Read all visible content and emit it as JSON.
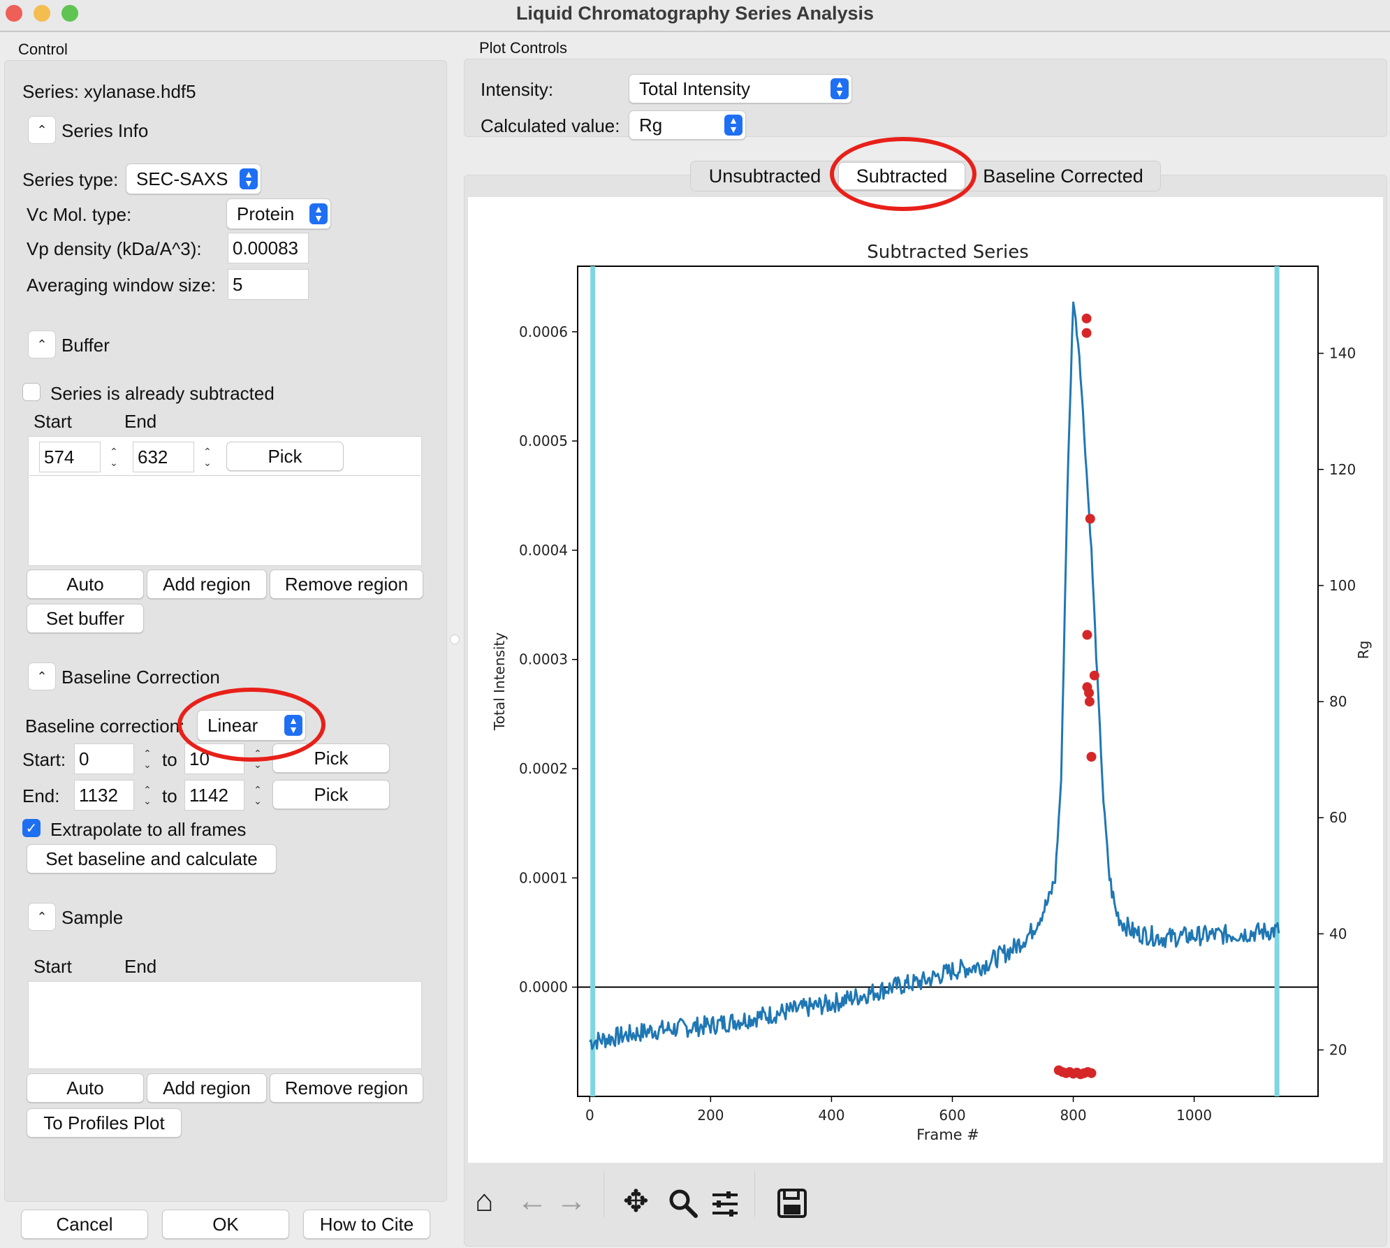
{
  "window": {
    "title": "Liquid Chromatography Series Analysis",
    "traffic_colors": [
      "#ee5f57",
      "#f4bd4f",
      "#60c453"
    ]
  },
  "control": {
    "group_label": "Control",
    "series_name": "Series: xylanase.hdf5",
    "series_info": {
      "header": "Series Info",
      "series_type_label": "Series type:",
      "series_type_value": "SEC-SAXS",
      "vc_mol_type_label": "Vc Mol. type:",
      "vc_mol_type_value": "Protein",
      "vp_density_label": "Vp density (kDa/A^3):",
      "vp_density_value": "0.00083",
      "avg_window_label": "Averaging window size:",
      "avg_window_value": "5"
    },
    "buffer": {
      "header": "Buffer",
      "already_subtracted_label": "Series is already subtracted",
      "already_subtracted_checked": false,
      "start_header": "Start",
      "end_header": "End",
      "regions": [
        {
          "start": "574",
          "end": "632",
          "pick_label": "Pick"
        }
      ],
      "auto_label": "Auto",
      "add_region_label": "Add region",
      "remove_region_label": "Remove region",
      "set_buffer_label": "Set buffer"
    },
    "baseline": {
      "header": "Baseline Correction",
      "correction_label": "Baseline correction:",
      "correction_value": "Linear",
      "start_label": "Start:",
      "start_from": "0",
      "start_to": "10",
      "end_label": "End:",
      "end_from": "1132",
      "end_to": "1142",
      "to_label": "to",
      "pick_label": "Pick",
      "extrapolate_label": "Extrapolate to all frames",
      "extrapolate_checked": true,
      "set_button_label": "Set baseline and calculate"
    },
    "sample": {
      "header": "Sample",
      "start_header": "Start",
      "end_header": "End",
      "auto_label": "Auto",
      "add_region_label": "Add region",
      "remove_region_label": "Remove region",
      "profiles_label": "To Profiles Plot"
    },
    "footer": {
      "cancel_label": "Cancel",
      "ok_label": "OK",
      "cite_label": "How to Cite"
    }
  },
  "plot_controls": {
    "group_label": "Plot Controls",
    "intensity_label": "Intensity:",
    "intensity_value": "Total Intensity",
    "calc_label": "Calculated value:",
    "calc_value": "Rg",
    "tabs": [
      "Unsubtracted",
      "Subtracted",
      "Baseline Corrected"
    ],
    "active_tab": "Subtracted"
  },
  "annotation_color": "#e8201a",
  "chart_data": {
    "type": "line",
    "title": "Subtracted Series",
    "xlabel": "Frame #",
    "ylabel": "Total Intensity",
    "y2label": "Rg",
    "xlim": [
      -20,
      1205
    ],
    "ylim": [
      -0.0001,
      0.00066
    ],
    "y2lim": [
      12,
      155
    ],
    "xticks": [
      0,
      200,
      400,
      600,
      800,
      1000
    ],
    "yticks": [
      0.0,
      0.0001,
      0.0002,
      0.0003,
      0.0004,
      0.0005,
      0.0006
    ],
    "ytick_labels": [
      "0.0000",
      "0.0001",
      "0.0002",
      "0.0003",
      "0.0004",
      "0.0005",
      "0.0006"
    ],
    "y2ticks": [
      20,
      40,
      60,
      80,
      100,
      120,
      140
    ],
    "baseline_markers": [
      5,
      1137
    ],
    "series_color": "#1f77b4",
    "rg_color": "#d62728",
    "marker_line_color": "#7fd6e0",
    "intensity_series": {
      "name": "Total Intensity",
      "x": [
        0,
        50,
        100,
        200,
        300,
        400,
        500,
        550,
        600,
        650,
        700,
        730,
        760,
        770,
        780,
        790,
        800,
        810,
        820,
        830,
        840,
        850,
        860,
        870,
        880,
        900,
        950,
        1000,
        1050,
        1100,
        1140
      ],
      "y": [
        -5e-05,
        -4.5e-05,
        -4e-05,
        -3.5e-05,
        -2.5e-05,
        -1.5e-05,
        0.0,
        5e-06,
        1.5e-05,
        2e-05,
        3.5e-05,
        5e-05,
        8e-05,
        0.0001,
        0.00019,
        0.00045,
        0.00063,
        0.00058,
        0.00049,
        0.0004,
        0.00028,
        0.00017,
        0.0001,
        7e-05,
        6e-05,
        5e-05,
        4.5e-05,
        4.7e-05,
        4.8e-05,
        5e-05,
        5.2e-05
      ]
    },
    "rg_series": {
      "name": "Rg",
      "x": [
        776,
        782,
        788,
        794,
        800,
        806,
        812,
        818,
        824,
        830,
        822,
        822,
        828,
        823,
        835,
        826,
        827,
        823,
        830
      ],
      "y": [
        16.5,
        16.2,
        16.0,
        16.2,
        15.9,
        16.1,
        15.8,
        16.0,
        16.2,
        16.0,
        146,
        143.5,
        111.5,
        91.5,
        84.5,
        81.5,
        80.0,
        82.5,
        70.5
      ]
    }
  }
}
